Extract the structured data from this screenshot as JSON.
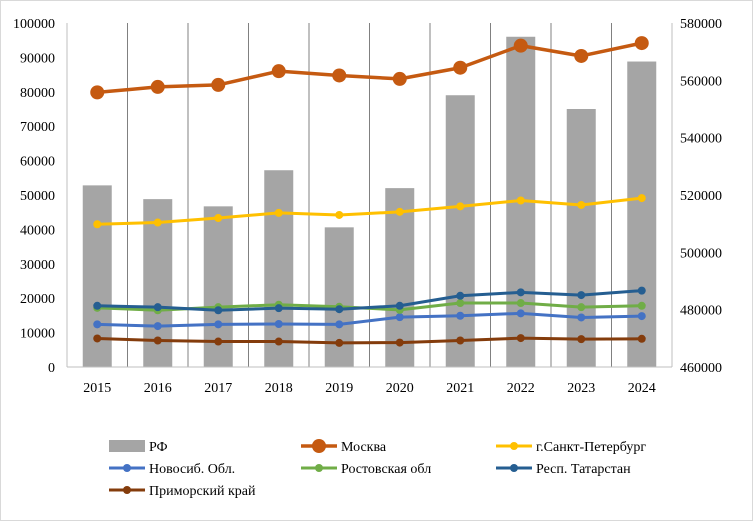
{
  "chart_data": {
    "type": "bar+line",
    "title": "",
    "categories": [
      "2015",
      "2016",
      "2017",
      "2018",
      "2019",
      "2020",
      "2021",
      "2022",
      "2023",
      "2024"
    ],
    "left_axis": {
      "min": 0,
      "max": 100000,
      "step": 10000,
      "ticks": [
        "0",
        "10000",
        "20000",
        "30000",
        "40000",
        "50000",
        "60000",
        "70000",
        "80000",
        "90000",
        "100000"
      ]
    },
    "right_axis": {
      "min": 460000,
      "max": 580000,
      "step": 20000,
      "ticks": [
        "460000",
        "480000",
        "500000",
        "520000",
        "540000",
        "560000",
        "580000"
      ]
    },
    "bar_series": {
      "name": "РФ",
      "axis": "left",
      "color": "#a5a5a5",
      "values": [
        52800,
        48800,
        46700,
        57200,
        40600,
        52000,
        79000,
        96000,
        75000,
        88800
      ]
    },
    "line_series": [
      {
        "name": "Москва",
        "axis": "right",
        "color": "#c55a11",
        "width": 3.5,
        "marker": 7,
        "values": [
          555800,
          557700,
          558400,
          563200,
          561700,
          560500,
          564400,
          572100,
          568500,
          573000
        ]
      },
      {
        "name": "г.Санкт-Петербург",
        "axis": "left",
        "color": "#ffc000",
        "width": 3,
        "marker": 4,
        "values": [
          41500,
          42000,
          43300,
          44800,
          44200,
          45100,
          46700,
          48400,
          47100,
          49100
        ]
      },
      {
        "name": "Новосиб. Обл.",
        "axis": "left",
        "color": "#4472c4",
        "width": 3,
        "marker": 4,
        "values": [
          12400,
          11900,
          12400,
          12500,
          12400,
          14500,
          14900,
          15600,
          14400,
          14800
        ]
      },
      {
        "name": "Ростовская обл",
        "axis": "left",
        "color": "#70ad47",
        "width": 3,
        "marker": 4,
        "values": [
          17200,
          16500,
          17400,
          18100,
          17500,
          16600,
          18600,
          18600,
          17400,
          17800
        ]
      },
      {
        "name": "Респ. Татарстан",
        "axis": "left",
        "color": "#255e91",
        "width": 3,
        "marker": 4,
        "values": [
          17800,
          17400,
          16500,
          17100,
          16800,
          17800,
          20700,
          21700,
          20900,
          22200
        ]
      },
      {
        "name": "Приморский край",
        "axis": "left",
        "color": "#843c0c",
        "width": 3,
        "marker": 4,
        "values": [
          8300,
          7700,
          7400,
          7400,
          7000,
          7100,
          7700,
          8400,
          8100,
          8200
        ]
      }
    ],
    "legend": {
      "placement": "bottom",
      "items": [
        "РФ",
        "Москва",
        "г.Санкт-Петербург",
        "Новосиб. Обл.",
        "Ростовская обл",
        "Респ. Татарстан",
        "Приморский край"
      ]
    },
    "grid": {
      "vertical": true,
      "horizontal": false
    }
  }
}
